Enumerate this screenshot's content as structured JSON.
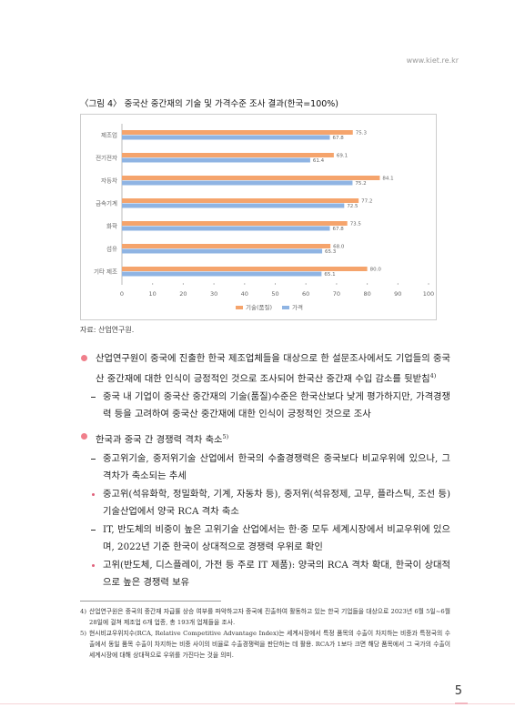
{
  "header": {
    "site": "www.kiet.re.kr"
  },
  "figure": {
    "title": "〈그림 4〉 중국산 중간재의 기술 및 가격수준 조사 결과(한국=100%)",
    "source": "자료: 산업연구원."
  },
  "chart_data": {
    "type": "bar",
    "orientation": "horizontal",
    "categories": [
      "제조업",
      "전기전자",
      "자동차",
      "금속기계",
      "화학",
      "섬유",
      "기타 제조"
    ],
    "series": [
      {
        "name": "기술(품질)",
        "color": "#f5a46c",
        "values": [
          75.3,
          69.1,
          84.1,
          77.2,
          73.5,
          68,
          80
        ],
        "value_labels": [
          "75.3",
          "69.1",
          "84.1",
          "77.2",
          "73.5",
          "68.0",
          "80.0"
        ]
      },
      {
        "name": "가격",
        "color": "#8fb4e3",
        "values": [
          67.8,
          61.4,
          75.2,
          72.5,
          67.8,
          65.3,
          65.1
        ],
        "value_labels": [
          "67.8",
          "61.4",
          "75.2",
          "72.5",
          "67.8",
          "65.3",
          "65.1"
        ]
      }
    ],
    "xlim": [
      0,
      100
    ],
    "xticks": [
      0,
      10,
      20,
      30,
      40,
      50,
      60,
      70,
      80,
      90,
      100
    ],
    "grid": false,
    "legend": "bottom"
  },
  "body": [
    {
      "level": 1,
      "text": "산업연구원이 중국에 진출한 한국 제조업체들을 대상으로 한 설문조사에서도 기업들의 중국산 중간재에 대한 인식이 긍정적인 것으로 조사되어 한국산 중간재 수입 감소를 뒷받침",
      "note": "4)"
    },
    {
      "level": 2,
      "text": "중국 내 기업이 중국산 중간재의 기술(품질)수준은 한국산보다 낮게 평가하지만, 가격경쟁력 등을 고려하여 중국산 중간재에 대한 인식이 긍정적인 것으로 조사"
    },
    {
      "level": 1,
      "text": "한국과 중국 간 경쟁력 격차 축소",
      "note": "5)"
    },
    {
      "level": 2,
      "text": "중고위기술, 중저위기술 산업에서 한국의 수출경쟁력은 중국보다 비교우위에 있으나, 그 격차가 축소되는 추세"
    },
    {
      "level": 3,
      "text": "중고위(석유화학, 정밀화학, 기계, 자동차 등), 중저위(석유정제, 고무, 플라스틱, 조선 등) 기술산업에서 양국 RCA 격차 축소"
    },
    {
      "level": 2,
      "text": "IT, 반도체의 비중이 높은 고위기술 산업에서는 한·중 모두 세계시장에서 비교우위에 있으며, 2022년 기준 한국이 상대적으로 경쟁력 우위로 확인"
    },
    {
      "level": 3,
      "text": "고위(반도체, 디스플레이, 가전 등 주로 IT 제품): 양국의 RCA 격차 확대, 한국이 상대적으로 높은 경쟁력 보유"
    }
  ],
  "footnotes": [
    {
      "mark": "4)",
      "text": "산업연구원은 중국의 중간재 자급률 상승 여부를 파악하고자 중국에 진출하여 활동하고 있는 한국 기업들을 대상으로 2023년 6월 5일~6월 28일에 걸쳐 제조업 6개 업종, 총 193개 업체들을 조사."
    },
    {
      "mark": "5)",
      "text": "현시비교우위지수(RCA, Relative Competitive Advantage Index)는 세계시장에서 특정 품목의 수출이 차지하는 비중과 특정국의 수출에서 동일 품목 수출이 차지하는 비중 사이의 비율로 수출경쟁력을 판단하는 데 활용. RCA가 1보다 크면 해당 품목에서 그 국가의 수출이 세계시장에 대해 상대적으로 우위를 가진다는 것을 의미."
    }
  ],
  "page_number": "5"
}
